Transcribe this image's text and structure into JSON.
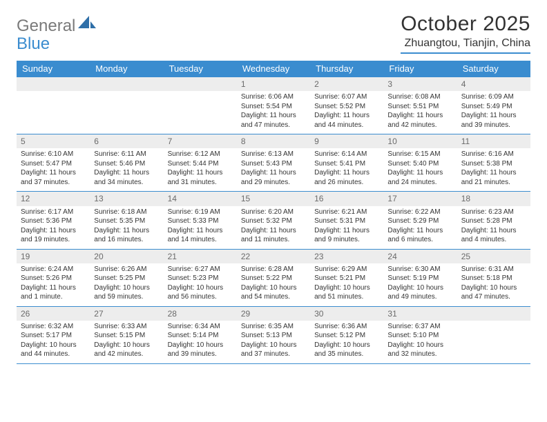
{
  "logo": {
    "general": "General",
    "blue": "Blue"
  },
  "header": {
    "month_title": "October 2025",
    "location": "Zhuangtou, Tianjin, China"
  },
  "styling": {
    "accent_color": "#3a8ccf",
    "header_text_color": "#333333",
    "daynum_bg": "#ededed",
    "daynum_color": "#6a6a6a",
    "body_text_color": "#333333",
    "background_color": "#ffffff",
    "logo_gray": "#7a7a7a",
    "month_title_fontsize": 30,
    "location_fontsize": 16,
    "weekday_fontsize": 13,
    "daynum_fontsize": 12,
    "cell_fontsize": 10
  },
  "weekdays": [
    "Sunday",
    "Monday",
    "Tuesday",
    "Wednesday",
    "Thursday",
    "Friday",
    "Saturday"
  ],
  "weeks": [
    [
      {
        "empty": true
      },
      {
        "empty": true
      },
      {
        "empty": true
      },
      {
        "n": "1",
        "sunrise": "Sunrise: 6:06 AM",
        "sunset": "Sunset: 5:54 PM",
        "day1": "Daylight: 11 hours",
        "day2": "and 47 minutes."
      },
      {
        "n": "2",
        "sunrise": "Sunrise: 6:07 AM",
        "sunset": "Sunset: 5:52 PM",
        "day1": "Daylight: 11 hours",
        "day2": "and 44 minutes."
      },
      {
        "n": "3",
        "sunrise": "Sunrise: 6:08 AM",
        "sunset": "Sunset: 5:51 PM",
        "day1": "Daylight: 11 hours",
        "day2": "and 42 minutes."
      },
      {
        "n": "4",
        "sunrise": "Sunrise: 6:09 AM",
        "sunset": "Sunset: 5:49 PM",
        "day1": "Daylight: 11 hours",
        "day2": "and 39 minutes."
      }
    ],
    [
      {
        "n": "5",
        "sunrise": "Sunrise: 6:10 AM",
        "sunset": "Sunset: 5:47 PM",
        "day1": "Daylight: 11 hours",
        "day2": "and 37 minutes."
      },
      {
        "n": "6",
        "sunrise": "Sunrise: 6:11 AM",
        "sunset": "Sunset: 5:46 PM",
        "day1": "Daylight: 11 hours",
        "day2": "and 34 minutes."
      },
      {
        "n": "7",
        "sunrise": "Sunrise: 6:12 AM",
        "sunset": "Sunset: 5:44 PM",
        "day1": "Daylight: 11 hours",
        "day2": "and 31 minutes."
      },
      {
        "n": "8",
        "sunrise": "Sunrise: 6:13 AM",
        "sunset": "Sunset: 5:43 PM",
        "day1": "Daylight: 11 hours",
        "day2": "and 29 minutes."
      },
      {
        "n": "9",
        "sunrise": "Sunrise: 6:14 AM",
        "sunset": "Sunset: 5:41 PM",
        "day1": "Daylight: 11 hours",
        "day2": "and 26 minutes."
      },
      {
        "n": "10",
        "sunrise": "Sunrise: 6:15 AM",
        "sunset": "Sunset: 5:40 PM",
        "day1": "Daylight: 11 hours",
        "day2": "and 24 minutes."
      },
      {
        "n": "11",
        "sunrise": "Sunrise: 6:16 AM",
        "sunset": "Sunset: 5:38 PM",
        "day1": "Daylight: 11 hours",
        "day2": "and 21 minutes."
      }
    ],
    [
      {
        "n": "12",
        "sunrise": "Sunrise: 6:17 AM",
        "sunset": "Sunset: 5:36 PM",
        "day1": "Daylight: 11 hours",
        "day2": "and 19 minutes."
      },
      {
        "n": "13",
        "sunrise": "Sunrise: 6:18 AM",
        "sunset": "Sunset: 5:35 PM",
        "day1": "Daylight: 11 hours",
        "day2": "and 16 minutes."
      },
      {
        "n": "14",
        "sunrise": "Sunrise: 6:19 AM",
        "sunset": "Sunset: 5:33 PM",
        "day1": "Daylight: 11 hours",
        "day2": "and 14 minutes."
      },
      {
        "n": "15",
        "sunrise": "Sunrise: 6:20 AM",
        "sunset": "Sunset: 5:32 PM",
        "day1": "Daylight: 11 hours",
        "day2": "and 11 minutes."
      },
      {
        "n": "16",
        "sunrise": "Sunrise: 6:21 AM",
        "sunset": "Sunset: 5:31 PM",
        "day1": "Daylight: 11 hours",
        "day2": "and 9 minutes."
      },
      {
        "n": "17",
        "sunrise": "Sunrise: 6:22 AM",
        "sunset": "Sunset: 5:29 PM",
        "day1": "Daylight: 11 hours",
        "day2": "and 6 minutes."
      },
      {
        "n": "18",
        "sunrise": "Sunrise: 6:23 AM",
        "sunset": "Sunset: 5:28 PM",
        "day1": "Daylight: 11 hours",
        "day2": "and 4 minutes."
      }
    ],
    [
      {
        "n": "19",
        "sunrise": "Sunrise: 6:24 AM",
        "sunset": "Sunset: 5:26 PM",
        "day1": "Daylight: 11 hours",
        "day2": "and 1 minute."
      },
      {
        "n": "20",
        "sunrise": "Sunrise: 6:26 AM",
        "sunset": "Sunset: 5:25 PM",
        "day1": "Daylight: 10 hours",
        "day2": "and 59 minutes."
      },
      {
        "n": "21",
        "sunrise": "Sunrise: 6:27 AM",
        "sunset": "Sunset: 5:23 PM",
        "day1": "Daylight: 10 hours",
        "day2": "and 56 minutes."
      },
      {
        "n": "22",
        "sunrise": "Sunrise: 6:28 AM",
        "sunset": "Sunset: 5:22 PM",
        "day1": "Daylight: 10 hours",
        "day2": "and 54 minutes."
      },
      {
        "n": "23",
        "sunrise": "Sunrise: 6:29 AM",
        "sunset": "Sunset: 5:21 PM",
        "day1": "Daylight: 10 hours",
        "day2": "and 51 minutes."
      },
      {
        "n": "24",
        "sunrise": "Sunrise: 6:30 AM",
        "sunset": "Sunset: 5:19 PM",
        "day1": "Daylight: 10 hours",
        "day2": "and 49 minutes."
      },
      {
        "n": "25",
        "sunrise": "Sunrise: 6:31 AM",
        "sunset": "Sunset: 5:18 PM",
        "day1": "Daylight: 10 hours",
        "day2": "and 47 minutes."
      }
    ],
    [
      {
        "n": "26",
        "sunrise": "Sunrise: 6:32 AM",
        "sunset": "Sunset: 5:17 PM",
        "day1": "Daylight: 10 hours",
        "day2": "and 44 minutes."
      },
      {
        "n": "27",
        "sunrise": "Sunrise: 6:33 AM",
        "sunset": "Sunset: 5:15 PM",
        "day1": "Daylight: 10 hours",
        "day2": "and 42 minutes."
      },
      {
        "n": "28",
        "sunrise": "Sunrise: 6:34 AM",
        "sunset": "Sunset: 5:14 PM",
        "day1": "Daylight: 10 hours",
        "day2": "and 39 minutes."
      },
      {
        "n": "29",
        "sunrise": "Sunrise: 6:35 AM",
        "sunset": "Sunset: 5:13 PM",
        "day1": "Daylight: 10 hours",
        "day2": "and 37 minutes."
      },
      {
        "n": "30",
        "sunrise": "Sunrise: 6:36 AM",
        "sunset": "Sunset: 5:12 PM",
        "day1": "Daylight: 10 hours",
        "day2": "and 35 minutes."
      },
      {
        "n": "31",
        "sunrise": "Sunrise: 6:37 AM",
        "sunset": "Sunset: 5:10 PM",
        "day1": "Daylight: 10 hours",
        "day2": "and 32 minutes."
      },
      {
        "empty": true
      }
    ]
  ]
}
